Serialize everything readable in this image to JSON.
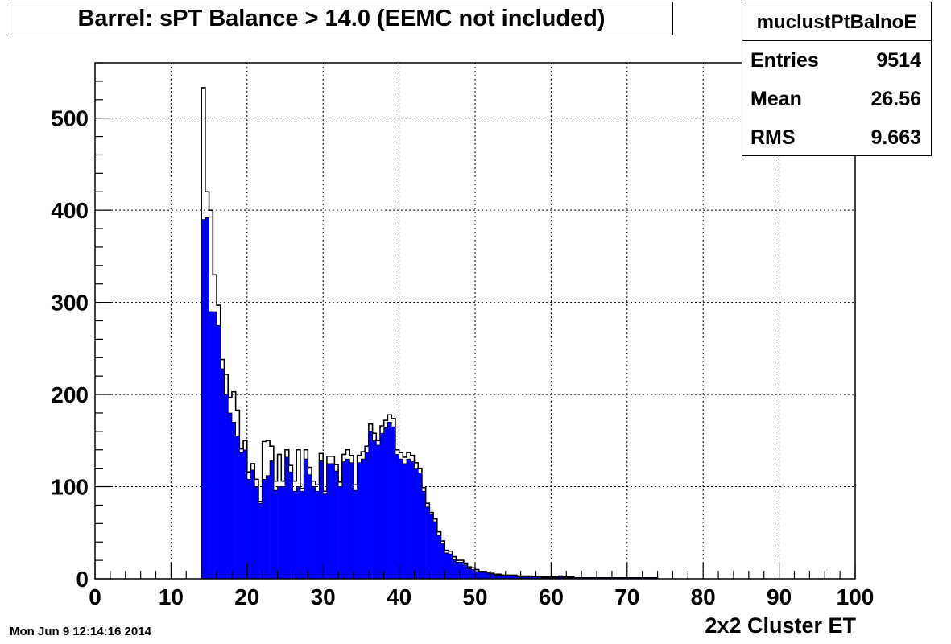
{
  "title": "Barrel: sPT Balance > 14.0 (EEMC not included)",
  "date": "Mon Jun  9 12:14:16 2014",
  "stats": {
    "name": "muclustPtBalnoE",
    "entries_label": "Entries",
    "entries": "9514",
    "mean_label": "Mean",
    "mean": "26.56",
    "rms_label": "RMS",
    "rms": "9.663"
  },
  "colors": {
    "fill": "#0000ff",
    "outline": "#000000",
    "grid": "#000000"
  },
  "chart_data": {
    "type": "bar",
    "xlabel": "2x2 Cluster ET",
    "ylabel": "",
    "xlim": [
      0,
      100
    ],
    "ylim": [
      0,
      560
    ],
    "bin_width": 0.5,
    "grid": true,
    "xticks": [
      0,
      10,
      20,
      30,
      40,
      50,
      60,
      70,
      80,
      90,
      100
    ],
    "yticks": [
      0,
      100,
      200,
      300,
      400,
      500
    ],
    "series": [
      {
        "x_start": 14.0,
        "values": [
          533,
          420,
          400,
          330,
          297,
          238,
          222,
          197,
          203,
          183,
          141,
          150,
          116,
          125,
          108,
          84,
          149,
          150,
          144,
          106,
          135,
          106,
          140,
          123,
          106,
          140,
          98,
          140,
          121,
          106,
          102,
          136,
          95,
          133,
          133,
          124,
          105,
          135,
          140,
          134,
          102,
          134,
          138,
          144,
          168,
          158,
          150,
          166,
          172,
          178,
          174,
          140,
          137,
          132,
          137,
          134,
          126,
          120,
          99,
          82,
          72,
          65,
          51,
          41,
          31,
          30,
          24,
          20,
          20,
          17,
          13,
          12,
          10,
          8,
          8,
          7,
          6,
          5,
          5,
          4,
          4,
          4,
          4,
          3,
          3,
          3,
          3,
          2,
          2,
          2,
          2,
          2,
          2,
          2,
          3,
          2,
          2,
          2,
          1,
          1,
          1,
          1,
          1,
          1,
          1,
          1,
          1,
          1,
          1,
          1,
          1,
          1,
          1,
          1,
          1,
          1,
          1,
          1,
          1,
          1
        ]
      },
      {
        "x_start": 14.0,
        "values": [
          390,
          392,
          290,
          290,
          275,
          228,
          200,
          180,
          170,
          155,
          137,
          140,
          108,
          118,
          100,
          82,
          108,
          112,
          128,
          96,
          100,
          100,
          132,
          116,
          95,
          100,
          95,
          130,
          113,
          100,
          95,
          128,
          92,
          125,
          125,
          117,
          100,
          127,
          130,
          126,
          96,
          126,
          130,
          137,
          160,
          150,
          145,
          158,
          164,
          170,
          165,
          135,
          130,
          125,
          130,
          127,
          120,
          115,
          95,
          78,
          70,
          62,
          47,
          38,
          28,
          27,
          21,
          18,
          18,
          15,
          11,
          10,
          8,
          7,
          7,
          6,
          5,
          4,
          4,
          3,
          3,
          3,
          3,
          2,
          2,
          2,
          2,
          2,
          2,
          1,
          1,
          1,
          1,
          1,
          2,
          1,
          1,
          1,
          1,
          1,
          1,
          1,
          1,
          1,
          1,
          1,
          1,
          1,
          1,
          1,
          1,
          1,
          1,
          1,
          1,
          1,
          1,
          1,
          1,
          1
        ]
      }
    ]
  }
}
